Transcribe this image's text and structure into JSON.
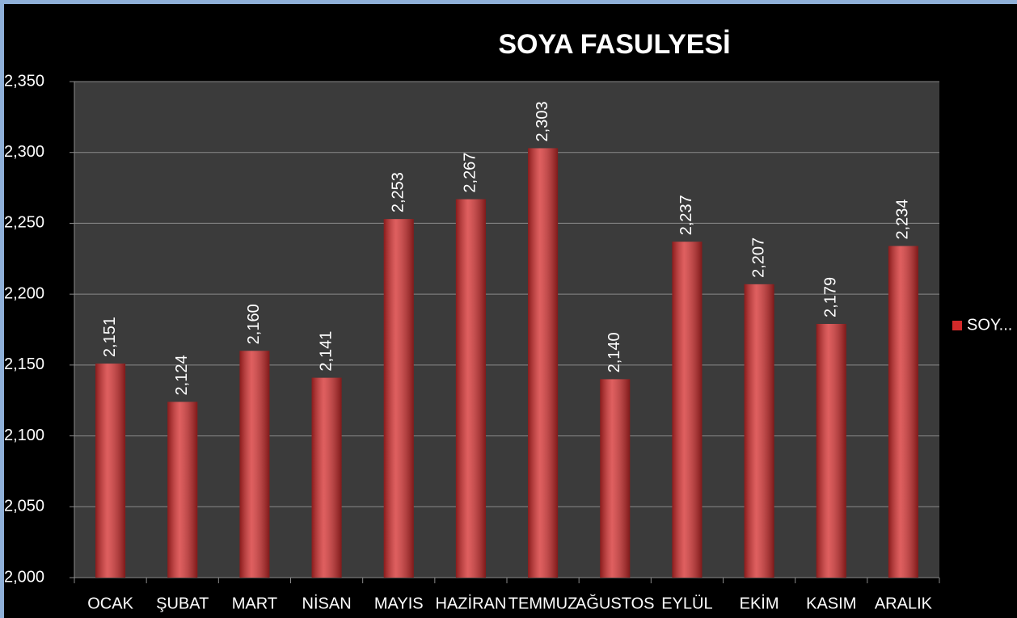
{
  "chart_data": {
    "type": "bar",
    "title": "SOYA FASULYESİ",
    "categories": [
      "OCAK",
      "ŞUBAT",
      "MART",
      "NİSAN",
      "MAYIS",
      "HAZİRAN",
      "TEMMUZ",
      "AĞUSTOS",
      "EYLÜL",
      "EKİM",
      "KASIM",
      "ARALIK"
    ],
    "series": [
      {
        "name": "SOY...",
        "color": "#d42a2a",
        "values": [
          2151,
          2124,
          2160,
          2141,
          2253,
          2267,
          2303,
          2140,
          2237,
          2207,
          2179,
          2234
        ],
        "value_labels": [
          "2,151",
          "2,124",
          "2,160",
          "2,141",
          "2,253",
          "2,267",
          "2,303",
          "2,140",
          "2,237",
          "2,207",
          "2,179",
          "2,234"
        ]
      }
    ],
    "ylim": [
      2000,
      2350
    ],
    "yticks": [
      {
        "value": 2000,
        "label": "2,000"
      },
      {
        "value": 2050,
        "label": "2,050"
      },
      {
        "value": 2100,
        "label": "2,100"
      },
      {
        "value": 2150,
        "label": "2,150"
      },
      {
        "value": 2200,
        "label": "2,200"
      },
      {
        "value": 2250,
        "label": "2,250"
      },
      {
        "value": 2300,
        "label": "2,300"
      },
      {
        "value": 2350,
        "label": "2,350"
      }
    ],
    "grid": true,
    "legend": "right"
  }
}
